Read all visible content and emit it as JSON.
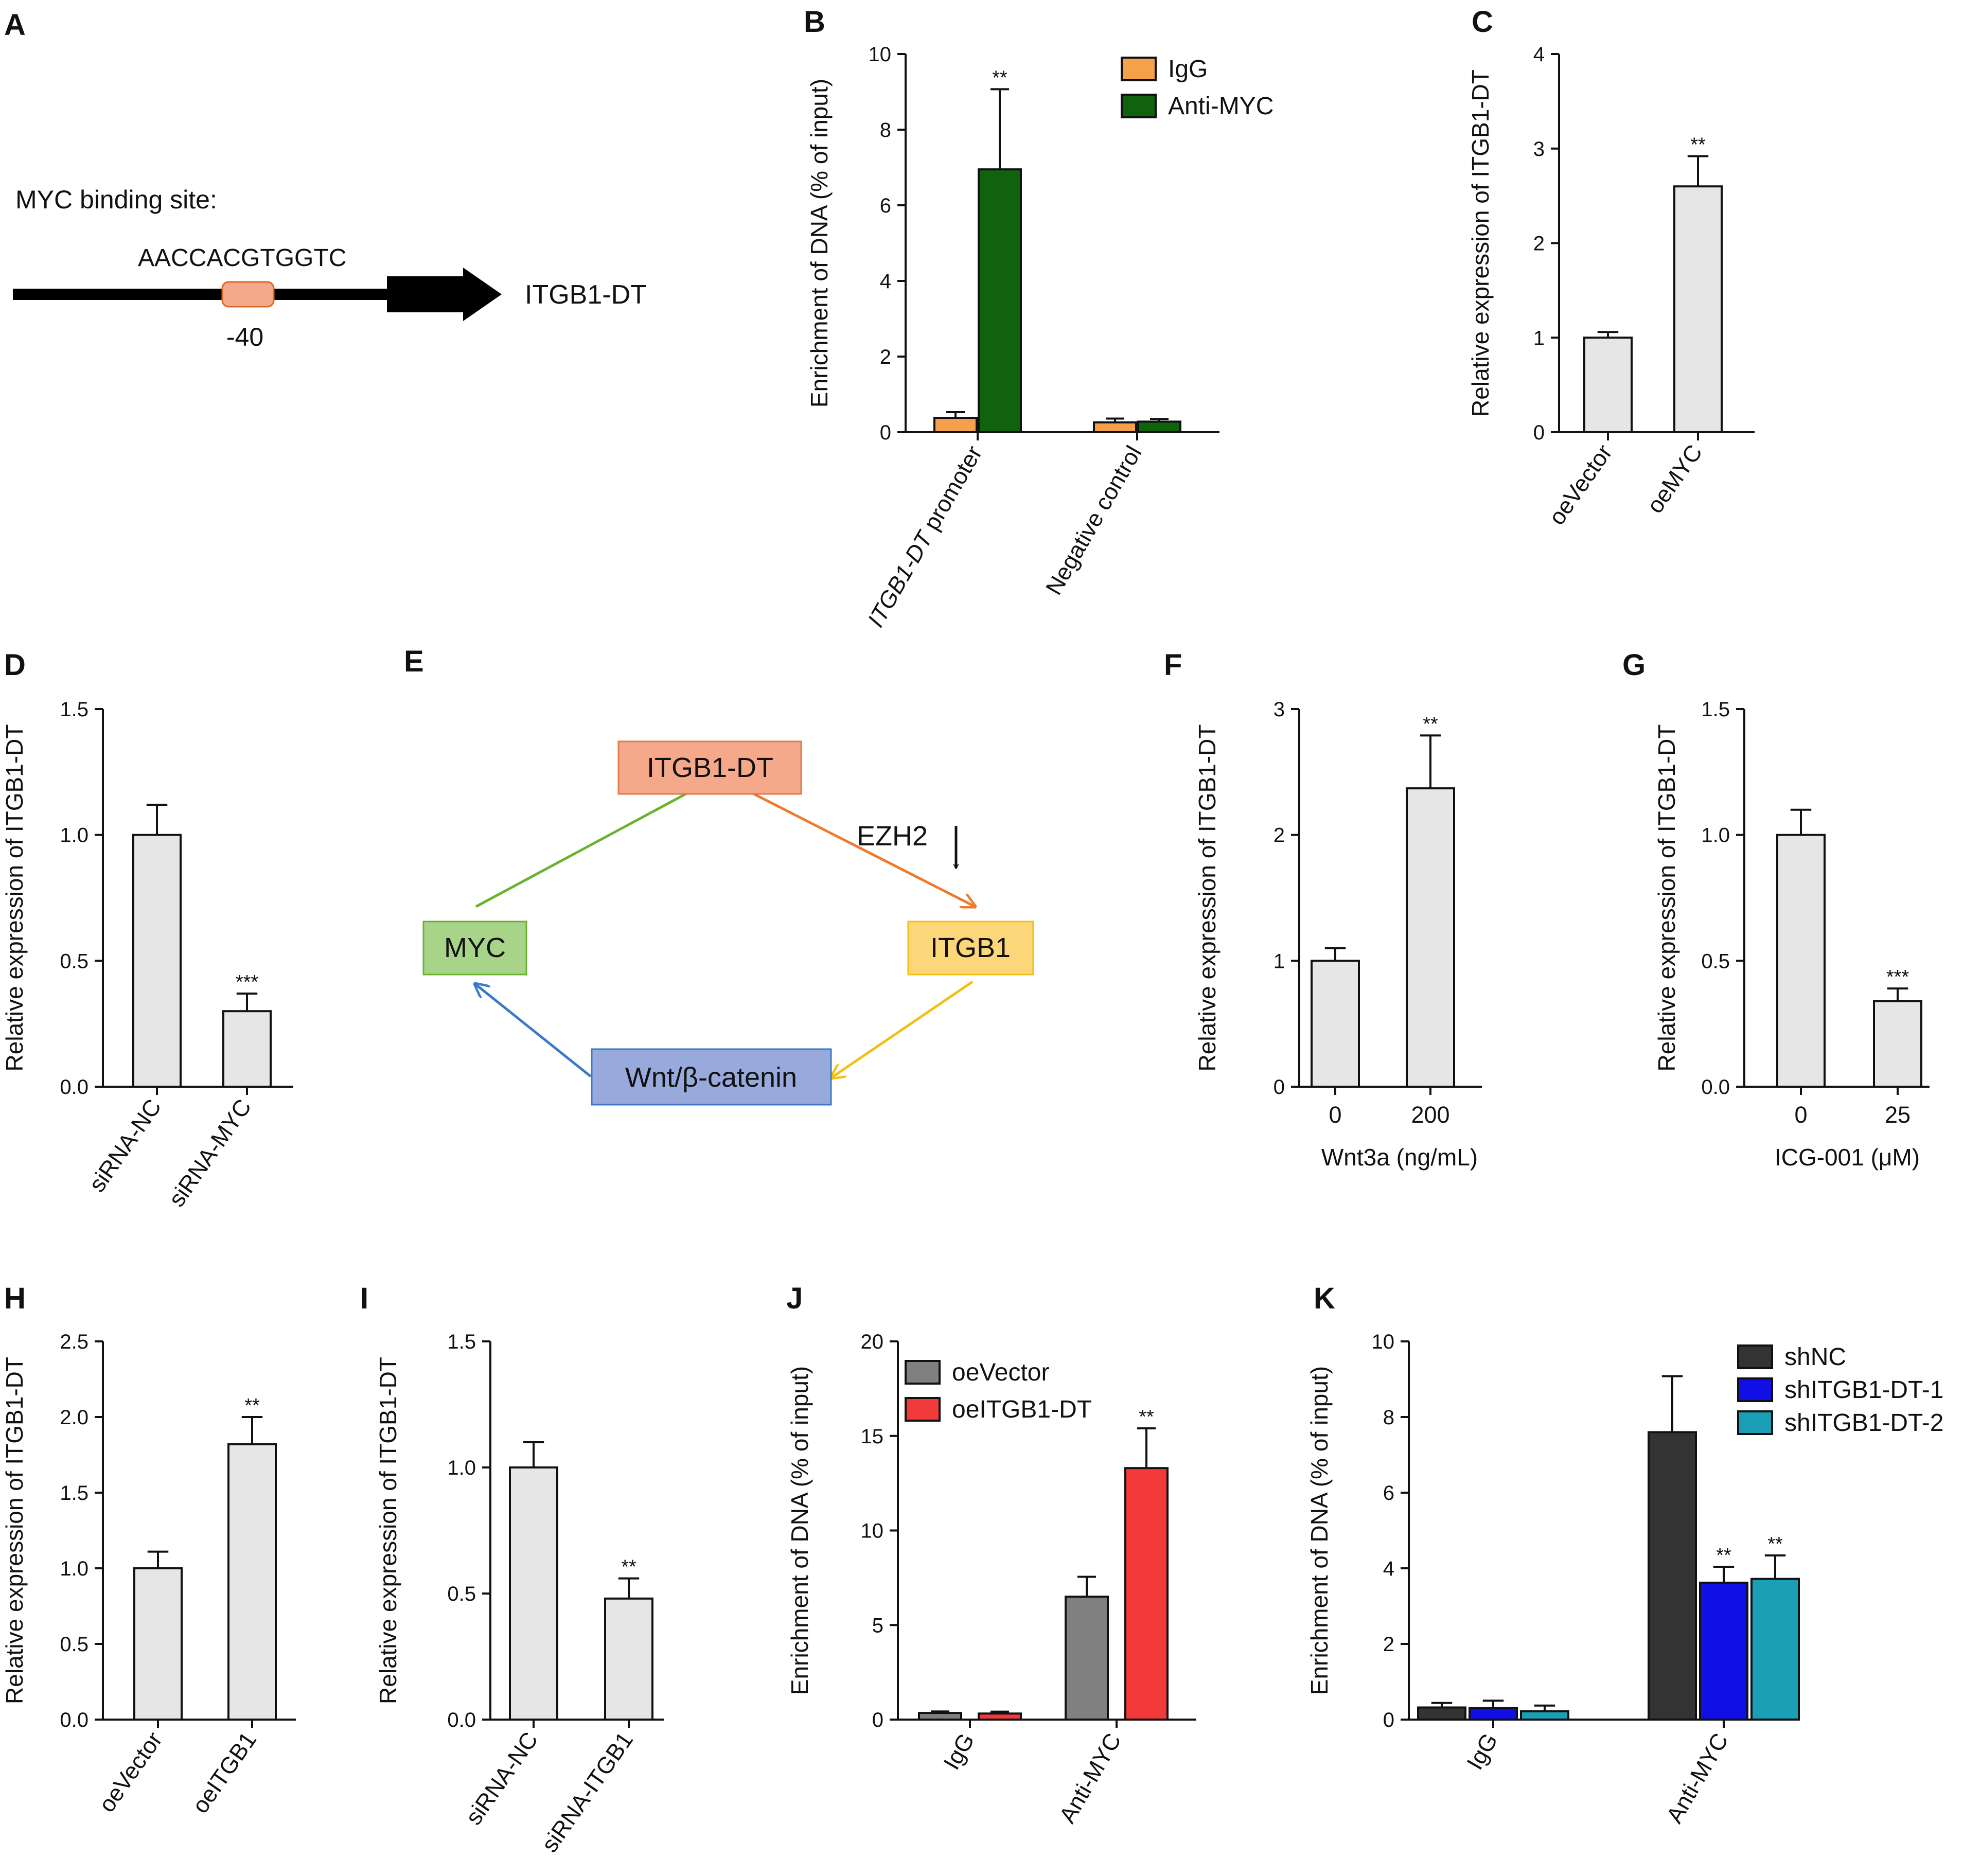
{
  "colors": {
    "igg": "#f5a04a",
    "anti_myc": "#10620f",
    "gray_bar": "#e6e6e6",
    "oevector_dark": "#808080",
    "oeitgb1dt_red": "#f23a3a",
    "shnc": "#333333",
    "shitgb1dt1": "#1010e6",
    "shitgb1dt2": "#1a9fb6",
    "site_text": "#d9692a",
    "site_box": "#f6a98a",
    "node_itgb1dt": "#f6a98a",
    "node_myc": "#a8d48a",
    "node_itgb1": "#fcd779",
    "node_wnt": "#98a9dc",
    "arrow_green": "#6ab230",
    "arrow_orange": "#ef7a2e",
    "arrow_yellow": "#f2c014",
    "arrow_blue": "#3c79c6"
  },
  "panels": {
    "A": {
      "letter": "A",
      "site_label": "MYC binding site:",
      "sequence": "AACCACGTGGTC",
      "position": "-40",
      "gene": "ITGB1-DT"
    },
    "E": {
      "letter": "E",
      "nodes": {
        "itgb1dt": "ITGB1-DT",
        "myc": "MYC",
        "itgb1": "ITGB1",
        "wnt": "Wnt/β-catenin"
      },
      "ezh2": "EZH2"
    }
  },
  "chart_data": [
    {
      "panel": "B",
      "type": "bar",
      "ylabel": "Enrichment of DNA (% of input)",
      "ylim": [
        0,
        10
      ],
      "yticks": [
        "0",
        "2",
        "4",
        "6",
        "8",
        "10"
      ],
      "categories": [
        "ITGB1-DT promoter",
        "Negative control"
      ],
      "italic_part": "ITGB1-DT",
      "series": [
        {
          "name": "IgG",
          "values": [
            0.38,
            0.26
          ],
          "errors": [
            0.15,
            0.1
          ]
        },
        {
          "name": "Anti-MYC",
          "values": [
            6.95,
            0.28
          ],
          "errors": [
            2.12,
            0.07
          ]
        }
      ],
      "significance": [
        {
          "series": 1,
          "category": 0,
          "label": "**"
        }
      ],
      "legend": "top-right"
    },
    {
      "panel": "C",
      "type": "bar",
      "ylabel": "Relative expression of ITGB1-DT",
      "ylim": [
        0,
        4
      ],
      "yticks": [
        "0",
        "1",
        "2",
        "3",
        "4"
      ],
      "categories": [
        "oeVector",
        "oeMYC"
      ],
      "values": [
        1.0,
        2.6
      ],
      "errors": [
        0.06,
        0.32
      ],
      "significance": [
        {
          "category": 1,
          "label": "**"
        }
      ]
    },
    {
      "panel": "D",
      "type": "bar",
      "ylabel": "Relative expression of ITGB1-DT",
      "ylim": [
        0,
        1.5
      ],
      "yticks": [
        "0.0",
        "0.5",
        "1.0",
        "1.5"
      ],
      "categories": [
        "siRNA-NC",
        "siRNA-MYC"
      ],
      "values": [
        1.0,
        0.3
      ],
      "errors": [
        0.12,
        0.07
      ],
      "significance": [
        {
          "category": 1,
          "label": "***"
        }
      ]
    },
    {
      "panel": "F",
      "type": "bar",
      "ylabel": "Relative expression of ITGB1-DT",
      "xlabel": "Wnt3a (ng/mL)",
      "ylim": [
        0,
        3
      ],
      "yticks": [
        "0",
        "1",
        "2",
        "3"
      ],
      "categories": [
        "0",
        "200"
      ],
      "values": [
        1.0,
        2.37
      ],
      "errors": [
        0.1,
        0.42
      ],
      "significance": [
        {
          "category": 1,
          "label": "**"
        }
      ]
    },
    {
      "panel": "G",
      "type": "bar",
      "ylabel": "Relative expression of ITGB1-DT",
      "xlabel": "ICG-001 (μM)",
      "ylim": [
        0,
        1.5
      ],
      "yticks": [
        "0.0",
        "0.5",
        "1.0",
        "1.5"
      ],
      "categories": [
        "0",
        "25"
      ],
      "values": [
        1.0,
        0.34
      ],
      "errors": [
        0.1,
        0.05
      ],
      "significance": [
        {
          "category": 1,
          "label": "***"
        }
      ]
    },
    {
      "panel": "H",
      "type": "bar",
      "ylabel": "Relative expression of ITGB1-DT",
      "ylim": [
        0,
        2.5
      ],
      "yticks": [
        "0.0",
        "0.5",
        "1.0",
        "1.5",
        "2.0",
        "2.5"
      ],
      "categories": [
        "oeVector",
        "oeITGB1"
      ],
      "values": [
        1.0,
        1.82
      ],
      "errors": [
        0.11,
        0.18
      ],
      "significance": [
        {
          "category": 1,
          "label": "**"
        }
      ]
    },
    {
      "panel": "I",
      "type": "bar",
      "ylabel": "Relative expression of ITGB1-DT",
      "ylim": [
        0,
        1.5
      ],
      "yticks": [
        "0.0",
        "0.5",
        "1.0",
        "1.5"
      ],
      "categories": [
        "siRNA-NC",
        "siRNA-ITGB1"
      ],
      "values": [
        1.0,
        0.48
      ],
      "errors": [
        0.1,
        0.08
      ],
      "significance": [
        {
          "category": 1,
          "label": "**"
        }
      ]
    },
    {
      "panel": "J",
      "type": "bar",
      "ylabel": "Enrichment of DNA (% of input)",
      "ylim": [
        0,
        20
      ],
      "yticks": [
        "0",
        "5",
        "10",
        "15",
        "20"
      ],
      "categories": [
        "IgG",
        "Anti-MYC"
      ],
      "series": [
        {
          "name": "oeVector",
          "values": [
            0.35,
            6.5
          ],
          "errors": [
            0.08,
            1.05
          ]
        },
        {
          "name": "oeITGB1-DT",
          "values": [
            0.32,
            13.3
          ],
          "errors": [
            0.1,
            2.1
          ]
        }
      ],
      "significance": [
        {
          "series": 1,
          "category": 1,
          "label": "**"
        }
      ],
      "legend": "top-left"
    },
    {
      "panel": "K",
      "type": "bar",
      "ylabel": "Enrichment of DNA (% of input)",
      "ylim": [
        0,
        10
      ],
      "yticks": [
        "0",
        "2",
        "4",
        "6",
        "8",
        "10"
      ],
      "categories": [
        "IgG",
        "Anti-MYC"
      ],
      "series": [
        {
          "name": "shNC",
          "values": [
            0.32,
            7.6
          ],
          "errors": [
            0.12,
            1.48
          ]
        },
        {
          "name": "shITGB1-DT-1",
          "values": [
            0.3,
            3.62
          ],
          "errors": [
            0.2,
            0.42
          ]
        },
        {
          "name": "shITGB1-DT-2",
          "values": [
            0.22,
            3.72
          ],
          "errors": [
            0.15,
            0.62
          ]
        }
      ],
      "significance": [
        {
          "series": 1,
          "category": 1,
          "label": "**"
        },
        {
          "series": 2,
          "category": 1,
          "label": "**"
        }
      ],
      "legend": "top-right"
    }
  ]
}
